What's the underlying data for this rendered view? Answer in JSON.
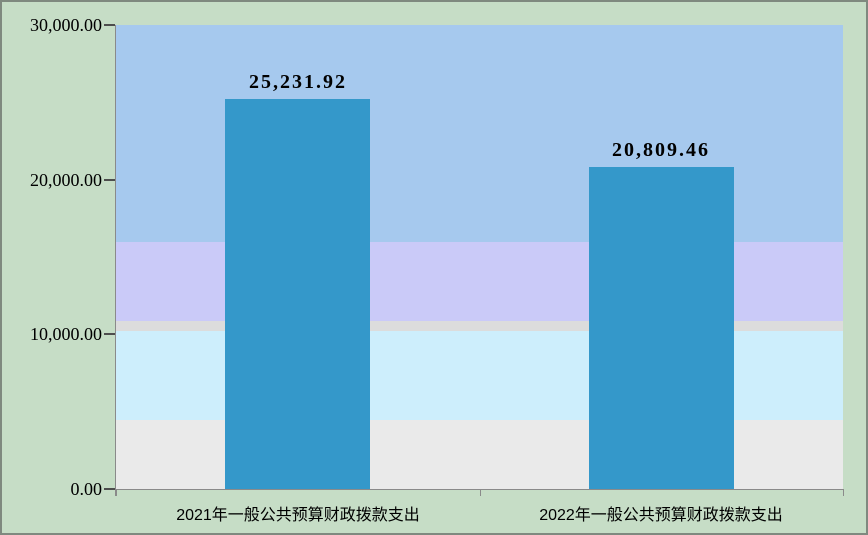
{
  "chart_data": {
    "type": "bar",
    "title": "",
    "categories": [
      "2021年一般公共预算财政拨款支出",
      "2022年一般公共预算财政拨款支出"
    ],
    "values": [
      25231.92,
      20809.46
    ],
    "value_labels": [
      "25,231.92",
      "20,809.46"
    ],
    "ylim": [
      0,
      30000
    ],
    "yticks": [
      {
        "value": 30000,
        "label": "30,000.00"
      },
      {
        "value": 20000,
        "label": "20,000.00"
      },
      {
        "value": 10000,
        "label": "10,000.00"
      },
      {
        "value": 0,
        "label": "0.00"
      }
    ],
    "grid": false,
    "legend_position": "none",
    "bar_color": "#3498ca",
    "plot_background_bands": [
      {
        "color": "#a6c9ee",
        "from_value": 30000,
        "to_value": 15970
      },
      {
        "color": "#cacaf8",
        "from_value": 15970,
        "to_value": 10860
      },
      {
        "color": "#dcdcdc",
        "from_value": 10860,
        "to_value": 10220
      },
      {
        "color": "#cdeefc",
        "from_value": 10220,
        "to_value": 4460
      },
      {
        "color": "#eaeaea",
        "from_value": 4460,
        "to_value": 0
      }
    ],
    "colors": {
      "outer_background": "#c6ddc6",
      "frame_border": "#7f897f",
      "axis_line": "#8a8a8a",
      "tick_mark": "#4d4d4d",
      "text": "#000000"
    }
  }
}
